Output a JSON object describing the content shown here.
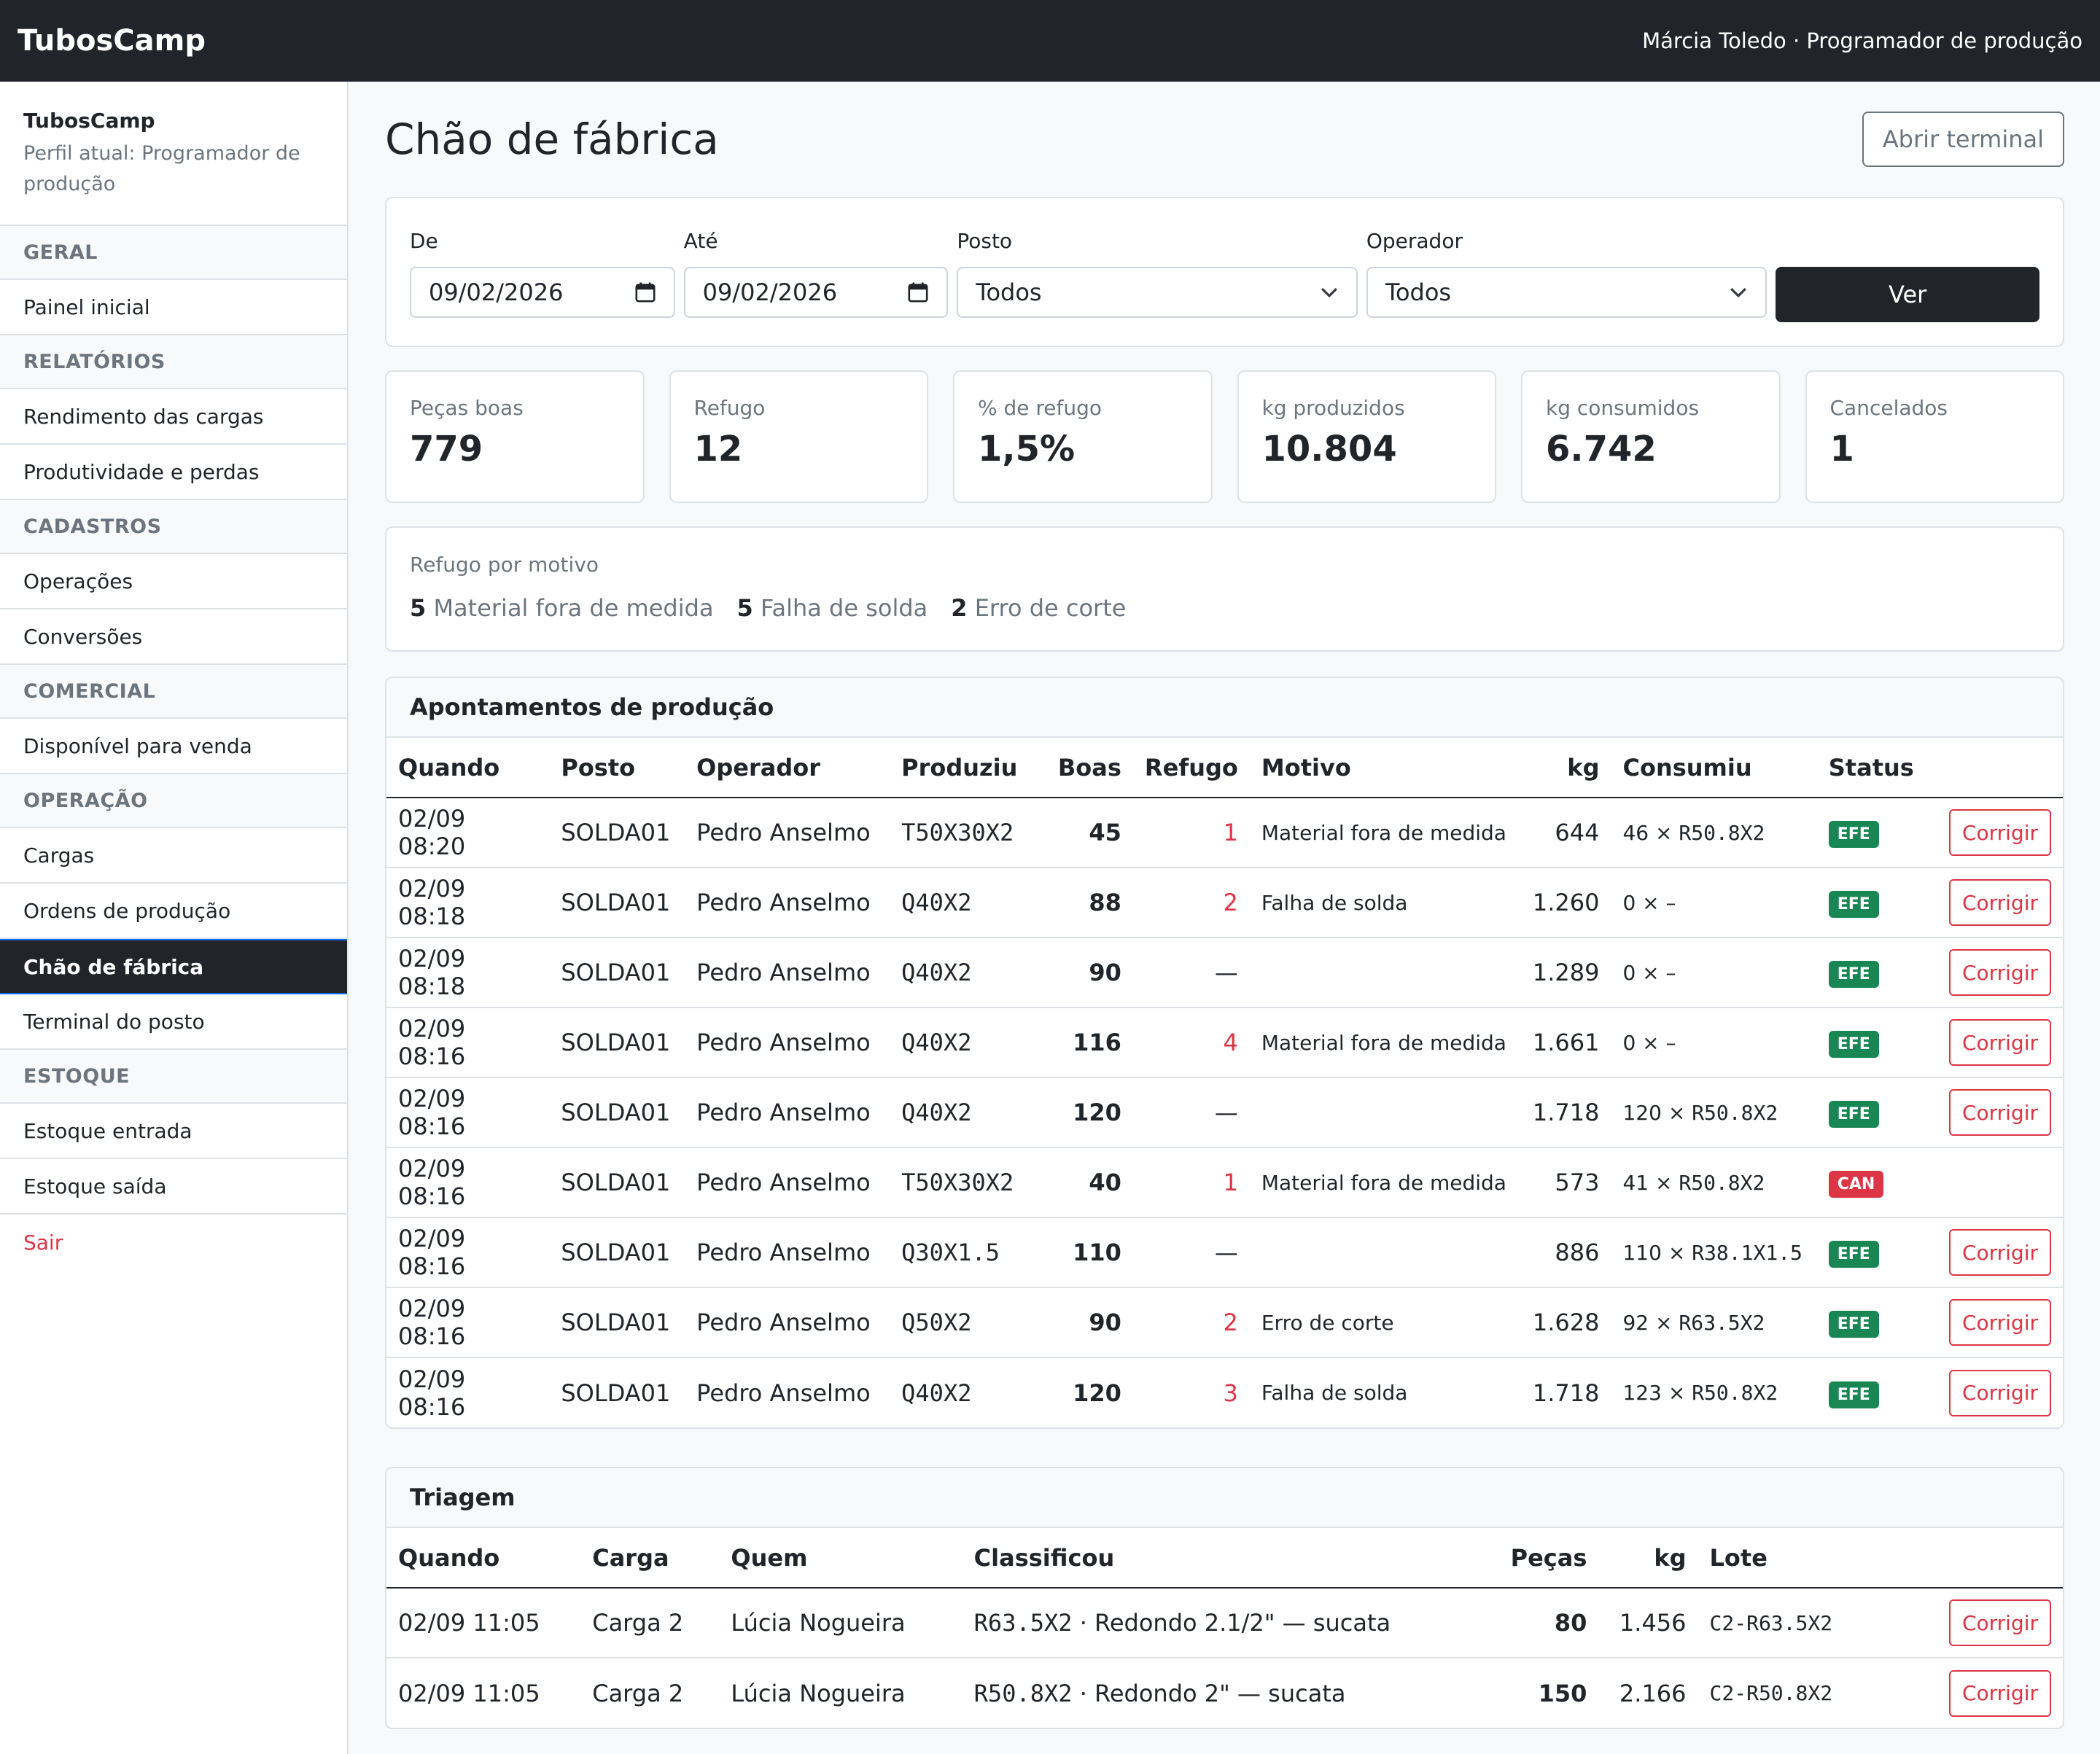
{
  "topbar": {
    "brand": "TubosCamp",
    "user": "Márcia Toledo · Programador de produção"
  },
  "sidebar": {
    "name": "TubosCamp",
    "profile": "Perfil atual: Programador de produção",
    "sections": [
      {
        "title": "GERAL",
        "items": [
          "Painel inicial"
        ]
      },
      {
        "title": "RELATÓRIOS",
        "items": [
          "Rendimento das cargas",
          "Produtividade e perdas"
        ]
      },
      {
        "title": "CADASTROS",
        "items": [
          "Operações",
          "Conversões"
        ]
      },
      {
        "title": "COMERCIAL",
        "items": [
          "Disponível para venda"
        ]
      },
      {
        "title": "OPERAÇÃO",
        "items": [
          "Cargas",
          "Ordens de produção",
          "Chão de fábrica",
          "Terminal do posto"
        ]
      },
      {
        "title": "ESTOQUE",
        "items": [
          "Estoque entrada",
          "Estoque saída"
        ]
      }
    ],
    "active": "Chão de fábrica",
    "logout": "Sair"
  },
  "page": {
    "title": "Chão de fábrica",
    "terminal_button": "Abrir terminal"
  },
  "filters": {
    "from_label": "De",
    "from_value": "09/02/2026",
    "to_label": "Até",
    "to_value": "09/02/2026",
    "post_label": "Posto",
    "post_value": "Todos",
    "operator_label": "Operador",
    "operator_value": "Todos",
    "submit": "Ver"
  },
  "stats": [
    {
      "label": "Peças boas",
      "value": "779"
    },
    {
      "label": "Refugo",
      "value": "12"
    },
    {
      "label": "% de refugo",
      "value": "1,5%"
    },
    {
      "label": "kg produzidos",
      "value": "10.804"
    },
    {
      "label": "kg consumidos",
      "value": "6.742"
    },
    {
      "label": "Cancelados",
      "value": "1"
    }
  ],
  "scrap_reasons": {
    "label": "Refugo por motivo",
    "items": [
      {
        "count": "5",
        "reason": "Material fora de medida"
      },
      {
        "count": "5",
        "reason": "Falha de solda"
      },
      {
        "count": "2",
        "reason": "Erro de corte"
      }
    ]
  },
  "production": {
    "title": "Apontamentos de produção",
    "headers": [
      "Quando",
      "Posto",
      "Operador",
      "Produziu",
      "Boas",
      "Refugo",
      "Motivo",
      "kg",
      "Consumiu",
      "Status"
    ],
    "action": "Corrigir",
    "rows": [
      {
        "when": "02/09 08:20",
        "post": "SOLDA01",
        "operator": "Pedro Anselmo",
        "product": "T50X30X2",
        "good": "45",
        "scrap": "1",
        "reason": "Material fora de medida",
        "kg": "644",
        "consumed_qty": "46 × ",
        "consumed_code": "R50.8X2",
        "status": "EFE"
      },
      {
        "when": "02/09 08:18",
        "post": "SOLDA01",
        "operator": "Pedro Anselmo",
        "product": "Q40X2",
        "good": "88",
        "scrap": "2",
        "reason": "Falha de solda",
        "kg": "1.260",
        "consumed_qty": "0 × –",
        "consumed_code": "",
        "status": "EFE"
      },
      {
        "when": "02/09 08:18",
        "post": "SOLDA01",
        "operator": "Pedro Anselmo",
        "product": "Q40X2",
        "good": "90",
        "scrap": "—",
        "reason": "",
        "kg": "1.289",
        "consumed_qty": "0 × –",
        "consumed_code": "",
        "status": "EFE"
      },
      {
        "when": "02/09 08:16",
        "post": "SOLDA01",
        "operator": "Pedro Anselmo",
        "product": "Q40X2",
        "good": "116",
        "scrap": "4",
        "reason": "Material fora de medida",
        "kg": "1.661",
        "consumed_qty": "0 × –",
        "consumed_code": "",
        "status": "EFE"
      },
      {
        "when": "02/09 08:16",
        "post": "SOLDA01",
        "operator": "Pedro Anselmo",
        "product": "Q40X2",
        "good": "120",
        "scrap": "—",
        "reason": "",
        "kg": "1.718",
        "consumed_qty": "120 × ",
        "consumed_code": "R50.8X2",
        "status": "EFE"
      },
      {
        "when": "02/09 08:16",
        "post": "SOLDA01",
        "operator": "Pedro Anselmo",
        "product": "T50X30X2",
        "good": "40",
        "scrap": "1",
        "reason": "Material fora de medida",
        "kg": "573",
        "consumed_qty": "41 × ",
        "consumed_code": "R50.8X2",
        "status": "CAN"
      },
      {
        "when": "02/09 08:16",
        "post": "SOLDA01",
        "operator": "Pedro Anselmo",
        "product": "Q30X1.5",
        "good": "110",
        "scrap": "—",
        "reason": "",
        "kg": "886",
        "consumed_qty": "110 × ",
        "consumed_code": "R38.1X1.5",
        "status": "EFE"
      },
      {
        "when": "02/09 08:16",
        "post": "SOLDA01",
        "operator": "Pedro Anselmo",
        "product": "Q50X2",
        "good": "90",
        "scrap": "2",
        "reason": "Erro de corte",
        "kg": "1.628",
        "consumed_qty": "92 × ",
        "consumed_code": "R63.5X2",
        "status": "EFE"
      },
      {
        "when": "02/09 08:16",
        "post": "SOLDA01",
        "operator": "Pedro Anselmo",
        "product": "Q40X2",
        "good": "120",
        "scrap": "3",
        "reason": "Falha de solda",
        "kg": "1.718",
        "consumed_qty": "123 × ",
        "consumed_code": "R50.8X2",
        "status": "EFE"
      }
    ]
  },
  "triage": {
    "title": "Triagem",
    "headers": [
      "Quando",
      "Carga",
      "Quem",
      "Classificou",
      "Peças",
      "kg",
      "Lote"
    ],
    "action": "Corrigir",
    "rows": [
      {
        "when": "02/09 11:05",
        "load": "Carga 2",
        "who": "Lúcia Nogueira",
        "class_code": "R63.5X2",
        "class_desc": " · Redondo 2.1/2\" — sucata",
        "pieces": "80",
        "kg": "1.456",
        "lot": "C2-R63.5X2"
      },
      {
        "when": "02/09 11:05",
        "load": "Carga 2",
        "who": "Lúcia Nogueira",
        "class_code": "R50.8X2",
        "class_desc": " · Redondo 2\" — sucata",
        "pieces": "150",
        "kg": "2.166",
        "lot": "C2-R50.8X2"
      }
    ]
  },
  "colors": {
    "dark": "#212529",
    "success": "#198754",
    "danger": "#dc3545",
    "muted": "#6c757d"
  }
}
